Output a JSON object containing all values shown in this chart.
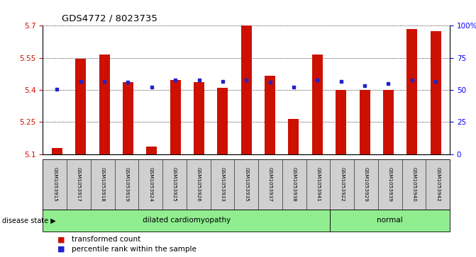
{
  "title": "GDS4772 / 8023735",
  "samples": [
    "GSM1053915",
    "GSM1053917",
    "GSM1053918",
    "GSM1053919",
    "GSM1053924",
    "GSM1053925",
    "GSM1053926",
    "GSM1053933",
    "GSM1053935",
    "GSM1053937",
    "GSM1053938",
    "GSM1053941",
    "GSM1053922",
    "GSM1053929",
    "GSM1053939",
    "GSM1053940",
    "GSM1053942"
  ],
  "bar_values": [
    5.13,
    5.545,
    5.565,
    5.435,
    5.135,
    5.445,
    5.435,
    5.41,
    5.7,
    5.465,
    5.265,
    5.565,
    5.4,
    5.4,
    5.4,
    5.685,
    5.675
  ],
  "dot_values": [
    5.405,
    5.44,
    5.44,
    5.435,
    5.415,
    5.445,
    5.445,
    5.44,
    5.445,
    5.435,
    5.415,
    5.445,
    5.44,
    5.42,
    5.43,
    5.445,
    5.44
  ],
  "ylim_left": [
    5.1,
    5.7
  ],
  "ylim_right": [
    0,
    100
  ],
  "yticks_left": [
    5.1,
    5.25,
    5.4,
    5.55,
    5.7
  ],
  "ytick_labels_left": [
    "5.1",
    "5.25",
    "5.4",
    "5.55",
    "5.7"
  ],
  "yticks_right": [
    0,
    25,
    50,
    75,
    100
  ],
  "ytick_labels_right": [
    "0",
    "25",
    "50",
    "75",
    "100%"
  ],
  "bar_color": "#CC1100",
  "dot_color": "#2222CC",
  "bar_width": 0.45,
  "background_color": "#ffffff",
  "label_area_color": "#d0d0d0",
  "dc_count": 12,
  "nm_count": 5
}
